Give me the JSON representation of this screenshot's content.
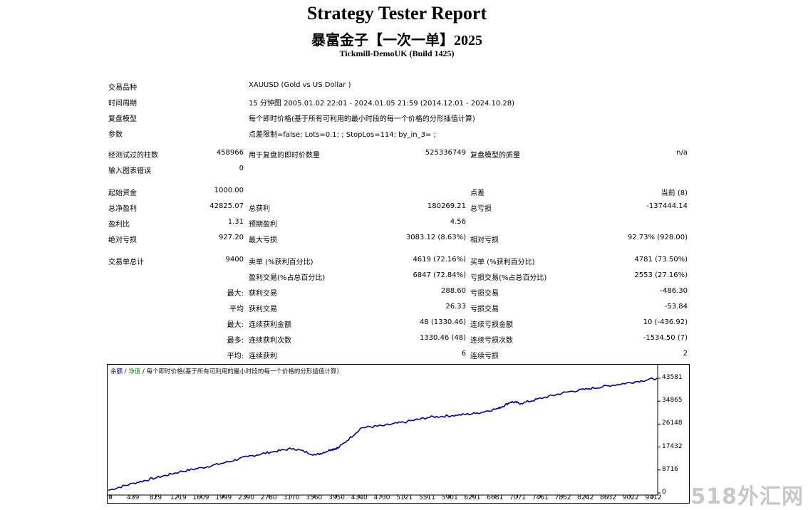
{
  "header": {
    "title": "Strategy Tester Report",
    "subtitle": "暴富金子【一次一单】2025",
    "server": "Tickmill-DemoUK (Build 1425)"
  },
  "settings": {
    "symbol_label": "交易品种",
    "symbol_value": "XAUUSD (Gold vs US Dollar )",
    "period_label": "时间周期",
    "period_value": "15 分钟图 2005.01.02 22:01 - 2024.01.05 21:59 (2014.12.01 - 2024.10.28)",
    "model_label": "复盘模型",
    "model_value": "每个即时价格(基于所有可利用的最小时段的每一个价格的分形插值计算)",
    "params_label": "参数",
    "params_value": "点差限制=false; Lots=0.1; ; StopLos=114; by_in_3= ;"
  },
  "bars": {
    "bars_label": "经测试过的柱数",
    "bars_value": "458966",
    "ticks_label": "用于复盘的即时价数量",
    "ticks_value": "525336749",
    "quality_label": "复盘模型的质量",
    "quality_value": "n/a",
    "errors_label": "输入图表错误",
    "errors_value": "0"
  },
  "results": {
    "deposit_label": "起始资金",
    "deposit_value": "1000.00",
    "spread_label": "点差",
    "spread_value": "当前 (8)",
    "net_label": "总净盈利",
    "net_value": "42825.07",
    "gross_profit_label": "总获利",
    "gross_profit_value": "180269.21",
    "gross_loss_label": "总亏损",
    "gross_loss_value": "-137444.14",
    "pf_label": "盈利比",
    "pf_value": "1.31",
    "ep_label": "预期盈利",
    "ep_value": "4.56",
    "abs_dd_label": "绝对亏损",
    "abs_dd_value": "927.20",
    "max_dd_label": "最大亏损",
    "max_dd_value": "3083.12 (8.63%)",
    "rel_dd_label": "相对亏损",
    "rel_dd_value": "92.73% (928.00)"
  },
  "trades": {
    "total_label": "交易单总计",
    "total_value": "9400",
    "short_label": "卖单 (%获利百分比)",
    "short_value": "4619 (72.16%)",
    "long_label": "买单 (%获利百分比)",
    "long_value": "4781 (73.50%)",
    "win_label": "盈利交易(%占总百分比)",
    "win_value": "6847 (72.84%)",
    "loss_label": "亏损交易(%占总百分比)",
    "loss_value": "2553 (27.16%)",
    "largest_prefix": "最大:",
    "largest_win_label": "获利交易",
    "largest_win_value": "288.60",
    "largest_loss_label": "亏损交易",
    "largest_loss_value": "-486.30",
    "avg_prefix": "平均",
    "avg_win_label": "获利交易",
    "avg_win_value": "26.33",
    "avg_loss_label": "亏损交易",
    "avg_loss_value": "-53.84",
    "max_prefix": "最大:",
    "max_consec_win_label": "连续获利金额",
    "max_consec_win_value": "48 (1330.46)",
    "max_consec_loss_label": "连续亏损金额",
    "max_consec_loss_value": "10 (-436.92)",
    "most_prefix": "最多:",
    "most_consec_win_label": "连续获利次数",
    "most_consec_win_value": "1330.46 (48)",
    "most_consec_loss_label": "连续亏损次数",
    "most_consec_loss_value": "-1534.50 (7)",
    "avgc_prefix": "平均:",
    "avg_consec_win_label": "连续获利",
    "avg_consec_win_value": "6",
    "avg_consec_loss_label": "连续亏损",
    "avg_consec_loss_value": "2"
  },
  "chart_legend": {
    "balance": "余额",
    "sep1": "/",
    "equity": "净值",
    "sep2": "/",
    "model": "每个即时价格(基于所有可利用的最小时段的每一个价格的分形插值计算)"
  },
  "chart_data": {
    "type": "line",
    "title": "",
    "xlabel": "",
    "ylabel": "",
    "x_ticks": [
      "0",
      "439",
      "829",
      "1219",
      "1609",
      "1999",
      "2390",
      "2780",
      "3170",
      "3560",
      "3950",
      "4340",
      "4730",
      "5121",
      "5511",
      "5901",
      "6291",
      "6681",
      "7071",
      "7461",
      "7852",
      "8242",
      "8632",
      "9022",
      "9412"
    ],
    "y_ticks": [
      "43581",
      "34865",
      "26148",
      "17432",
      "8716",
      "0"
    ],
    "xlim": [
      0,
      9400
    ],
    "ylim": [
      0,
      43581
    ],
    "series": [
      {
        "color": "#00008b",
        "x": [
          0,
          439,
          829,
          1219,
          1609,
          1999,
          2390,
          2780,
          3170,
          3560,
          3820,
          3950,
          4340,
          4730,
          5121,
          5511,
          5901,
          6291,
          6681,
          6900,
          7071,
          7461,
          7852,
          8242,
          8632,
          9022,
          9400
        ],
        "y": [
          1000,
          3700,
          5800,
          8000,
          9600,
          11500,
          13800,
          15500,
          16900,
          14400,
          16500,
          17200,
          24800,
          25600,
          27100,
          28800,
          29400,
          30200,
          32100,
          34600,
          34000,
          36200,
          38300,
          39600,
          40900,
          42200,
          43600
        ]
      }
    ],
    "grid": false,
    "legend": "top-left"
  },
  "watermark": "518外汇网"
}
